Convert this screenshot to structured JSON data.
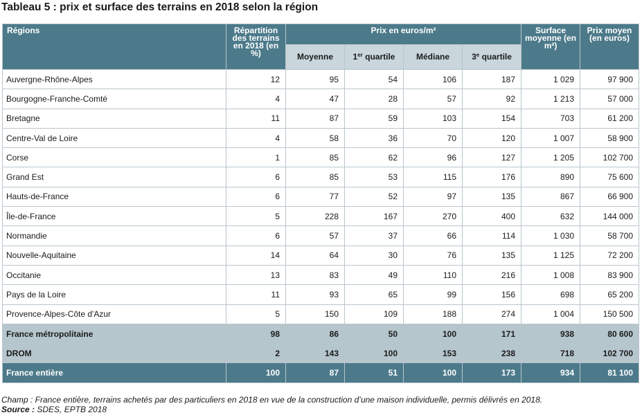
{
  "title": "Tableau 5 : prix et surface des terrains en 2018 selon la région",
  "header": {
    "regions": "Régions",
    "repartition": "Répartition des terrains en 2018 (en %)",
    "prix_group": "Prix en euros/m²",
    "moyenne": "Moyenne",
    "q1_num": "1",
    "q1_sup": "er",
    "q1_rest": " quartile",
    "mediane": "Médiane",
    "q3_num": "3",
    "q3_sup": "e",
    "q3_rest": " quartile",
    "surface": "Surface moyenne (en m²)",
    "prix_moyen": "Prix moyen (en euros)"
  },
  "rows": [
    {
      "region": "Auvergne-Rhône-Alpes",
      "rep": "12",
      "moy": "95",
      "q1": "54",
      "med": "106",
      "q3": "187",
      "surf": "1 029",
      "prix": "97 900"
    },
    {
      "region": "Bourgogne-Franche-Comté",
      "rep": "4",
      "moy": "47",
      "q1": "28",
      "med": "57",
      "q3": "92",
      "surf": "1 213",
      "prix": "57 000"
    },
    {
      "region": "Bretagne",
      "rep": "11",
      "moy": "87",
      "q1": "59",
      "med": "103",
      "q3": "154",
      "surf": "703",
      "prix": "61 200"
    },
    {
      "region": "Centre-Val de Loire",
      "rep": "4",
      "moy": "58",
      "q1": "36",
      "med": "70",
      "q3": "120",
      "surf": "1 007",
      "prix": "58 900"
    },
    {
      "region": "Corse",
      "rep": "1",
      "moy": "85",
      "q1": "62",
      "med": "96",
      "q3": "127",
      "surf": "1 205",
      "prix": "102 700"
    },
    {
      "region": "Grand Est",
      "rep": "6",
      "moy": "85",
      "q1": "53",
      "med": "115",
      "q3": "176",
      "surf": "890",
      "prix": "75 600"
    },
    {
      "region": "Hauts-de-France",
      "rep": "6",
      "moy": "77",
      "q1": "52",
      "med": "97",
      "q3": "135",
      "surf": "867",
      "prix": "66 900"
    },
    {
      "region": "Île-de-France",
      "rep": "5",
      "moy": "228",
      "q1": "167",
      "med": "270",
      "q3": "400",
      "surf": "632",
      "prix": "144 000"
    },
    {
      "region": "Normandie",
      "rep": "6",
      "moy": "57",
      "q1": "37",
      "med": "66",
      "q3": "114",
      "surf": "1 030",
      "prix": "58 700"
    },
    {
      "region": "Nouvelle-Aquitaine",
      "rep": "14",
      "moy": "64",
      "q1": "30",
      "med": "76",
      "q3": "135",
      "surf": "1 125",
      "prix": "72 200"
    },
    {
      "region": "Occitanie",
      "rep": "13",
      "moy": "83",
      "q1": "49",
      "med": "110",
      "q3": "216",
      "surf": "1 008",
      "prix": "83 900"
    },
    {
      "region": "Pays de la Loire",
      "rep": "11",
      "moy": "93",
      "q1": "65",
      "med": "99",
      "q3": "156",
      "surf": "698",
      "prix": "65 200"
    },
    {
      "region": "Provence-Alpes-Côte d'Azur",
      "rep": "5",
      "moy": "150",
      "q1": "109",
      "med": "188",
      "q3": "274",
      "surf": "1 004",
      "prix": "150 500"
    },
    {
      "region": "France métropolitaine",
      "rep": "98",
      "moy": "86",
      "q1": "50",
      "med": "100",
      "q3": "171",
      "surf": "938",
      "prix": "80 600",
      "style": "mid"
    },
    {
      "region": "DROM",
      "rep": "2",
      "moy": "143",
      "q1": "100",
      "med": "153",
      "q3": "238",
      "surf": "718",
      "prix": "102 700",
      "style": "mid"
    },
    {
      "region": "France entière",
      "rep": "100",
      "moy": "87",
      "q1": "51",
      "med": "100",
      "q3": "173",
      "surf": "934",
      "prix": "81 100",
      "style": "tot"
    }
  ],
  "footer": {
    "champ": "Champ : France entière, terrains achetés par des particuliers en 2018 en vue de la construction d’une maison individuelle, permis délivrés en 2018.",
    "source_label": "Source :",
    "source_text": " SDES, EPTB 2018"
  },
  "colors": {
    "header": "#4c7a8a",
    "subheader": "#c9d6dc",
    "aggregate": "#b6c6cd",
    "border": "#b9c6cd"
  }
}
